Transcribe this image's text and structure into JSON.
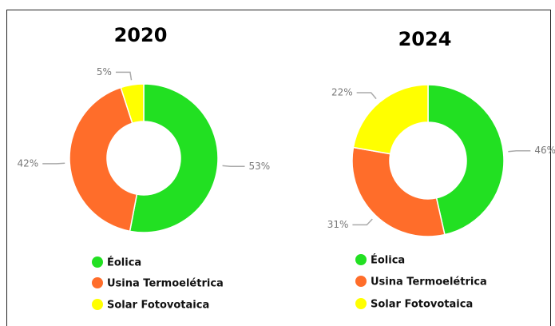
{
  "chart_data": [
    {
      "type": "donut",
      "title": "2020",
      "categories": [
        "Éolica",
        "Usina Termoelétrica",
        "Solar Fotovotaica"
      ],
      "values": [
        53,
        42,
        5
      ],
      "value_labels": [
        "53%",
        "42%",
        "5%"
      ],
      "colors": [
        "#22e022",
        "#ff6d2a",
        "#ffff00"
      ]
    },
    {
      "type": "donut",
      "title": "2024",
      "categories": [
        "Éolica",
        "Usina Termoelétrica",
        "Solar Fotovotaica"
      ],
      "values": [
        46,
        31,
        22
      ],
      "value_labels": [
        "46%",
        "31%",
        "22%"
      ],
      "colors": [
        "#22e022",
        "#ff6d2a",
        "#ffff00"
      ]
    }
  ]
}
